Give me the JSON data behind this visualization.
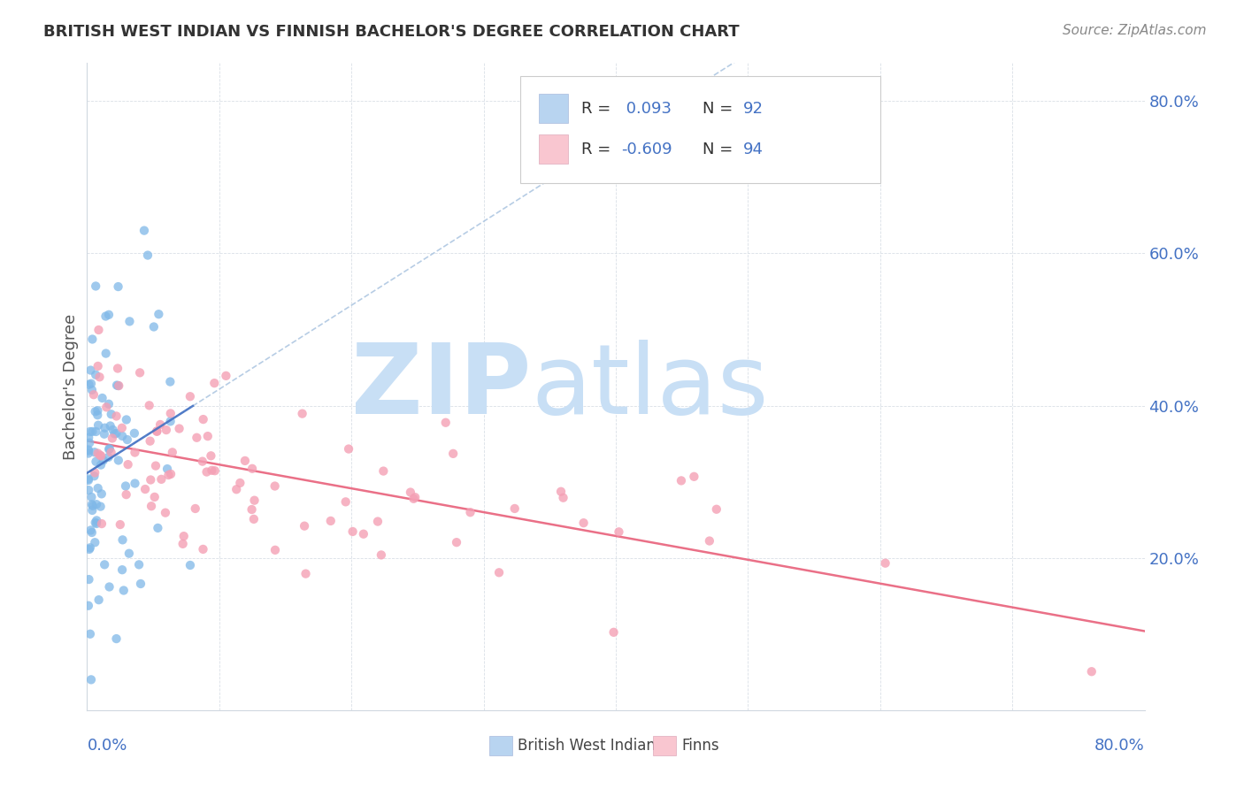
{
  "title": "BRITISH WEST INDIAN VS FINNISH BACHELOR'S DEGREE CORRELATION CHART",
  "source_text": "Source: ZipAtlas.com",
  "ylabel": "Bachelor's Degree",
  "xmin": 0.0,
  "xmax": 0.8,
  "ymin": 0.0,
  "ymax": 0.85,
  "blue_R": 0.093,
  "blue_N": 92,
  "pink_R": -0.609,
  "pink_N": 94,
  "blue_scatter_color": "#7fb8e8",
  "pink_scatter_color": "#f4a0b5",
  "blue_fill": "#b8d4f0",
  "pink_fill": "#f9c6d0",
  "blue_line_color": "#4472c4",
  "pink_line_color": "#e8607a",
  "watermark_zip": "ZIP",
  "watermark_atlas": "atlas",
  "watermark_color": "#c8dff5",
  "legend_label_blue": "British West Indians",
  "legend_label_pink": "Finns",
  "blue_seed": 42,
  "pink_seed": 77
}
